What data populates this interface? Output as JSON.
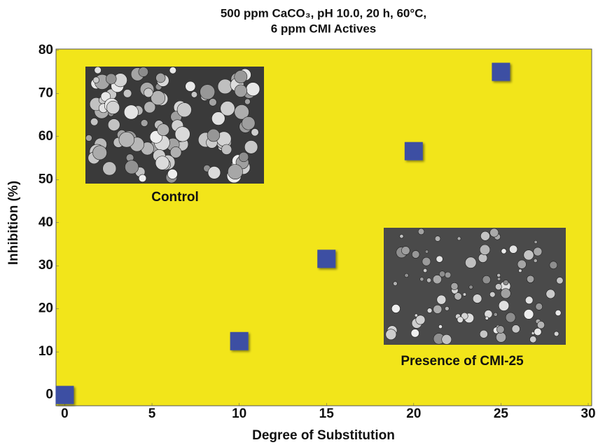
{
  "chart_data": {
    "type": "scatter",
    "title": "500 ppm CaCO₃, pH 10.0, 20 h, 60°C,",
    "subtitle": "6 ppm CMI Actives",
    "x_label": "Degree of Substitution",
    "y_label": "Inhibition (%)",
    "x": [
      0,
      10,
      15,
      20,
      25
    ],
    "values": [
      0,
      12.5,
      31.6,
      56.6,
      75
    ],
    "color": "#3c4fa3",
    "background": "#f2e51a",
    "xlim": [
      -0.5,
      30.2
    ],
    "xticks": [
      0,
      5,
      10,
      15,
      20,
      25,
      30
    ],
    "ylim": [
      -2.5,
      80.3
    ],
    "yticks": [
      0,
      10,
      20,
      30,
      40,
      50,
      60,
      70,
      80
    ],
    "annotations": [
      "Control",
      "Presence of CMI-25"
    ]
  }
}
